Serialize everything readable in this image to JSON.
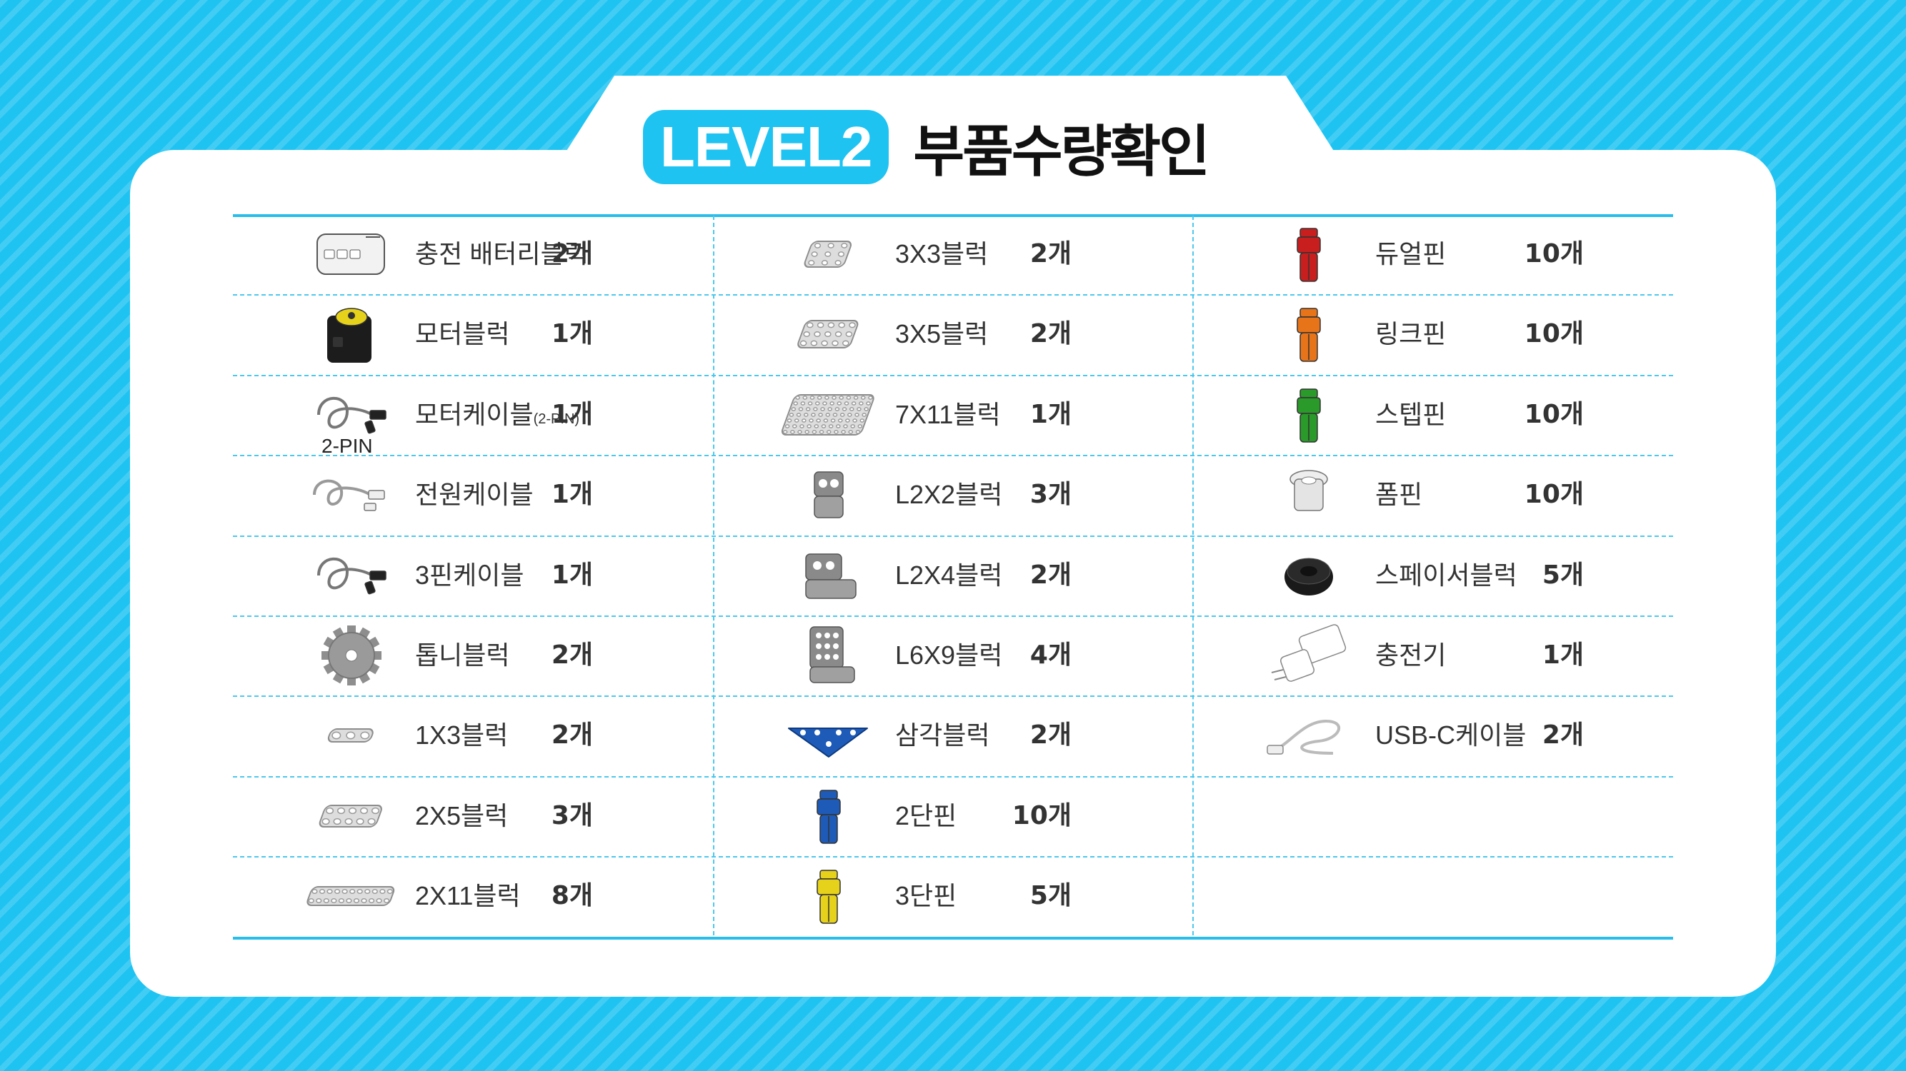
{
  "header": {
    "level": "LEVEL2",
    "title": "부품수량확인"
  },
  "columns": [
    {
      "rows": [
        {
          "name": "충전 배터리블럭",
          "qty": "2개",
          "icon": "battery-block-icon",
          "color": "#e8e8e8"
        },
        {
          "name": "모터블럭",
          "qty": "1개",
          "icon": "motor-block-icon",
          "color": "#222222"
        },
        {
          "name": "모터케이블",
          "name_suffix": "(2-PIN)",
          "qty": "1개",
          "icon": "motor-cable-icon",
          "icon_label": "2-PIN",
          "color": "#555555"
        },
        {
          "name": "전원케이블",
          "qty": "1개",
          "icon": "power-cable-icon",
          "color": "#888888"
        },
        {
          "name": "3핀케이블",
          "qty": "1개",
          "icon": "three-pin-cable-icon",
          "color": "#555555"
        },
        {
          "name": "톱니블럭",
          "qty": "2개",
          "icon": "gear-block-icon",
          "color": "#999999"
        },
        {
          "name": "1X3블럭",
          "qty": "2개",
          "icon": "block-1x3-icon",
          "color": "#dddddd"
        },
        {
          "name": "2X5블럭",
          "qty": "3개",
          "icon": "block-2x5-icon",
          "color": "#dddddd"
        },
        {
          "name": "2X11블럭",
          "qty": "8개",
          "icon": "block-2x11-icon",
          "color": "#dddddd"
        }
      ]
    },
    {
      "rows": [
        {
          "name": "3X3블럭",
          "qty": "2개",
          "icon": "block-3x3-icon",
          "color": "#dddddd"
        },
        {
          "name": "3X5블럭",
          "qty": "2개",
          "icon": "block-3x5-icon",
          "color": "#dddddd"
        },
        {
          "name": "7X11블럭",
          "qty": "1개",
          "icon": "block-7x11-icon",
          "color": "#dddddd"
        },
        {
          "name": "L2X2블럭",
          "qty": "3개",
          "icon": "l-block-2x2-icon",
          "color": "#8a8a8a"
        },
        {
          "name": "L2X4블럭",
          "qty": "2개",
          "icon": "l-block-2x4-icon",
          "color": "#8a8a8a"
        },
        {
          "name": "L6X9블럭",
          "qty": "4개",
          "icon": "l-block-6x9-icon",
          "color": "#8a8a8a"
        },
        {
          "name": "삼각블럭",
          "qty": "2개",
          "icon": "triangle-block-icon",
          "color": "#1e5bb8"
        },
        {
          "name": "2단핀",
          "qty": "10개",
          "icon": "two-step-pin-icon",
          "color": "#1e5bb8"
        },
        {
          "name": "3단핀",
          "qty": "5개",
          "icon": "three-step-pin-icon",
          "color": "#e6d21a"
        }
      ]
    },
    {
      "rows": [
        {
          "name": "듀얼핀",
          "qty": "10개",
          "icon": "dual-pin-icon",
          "color": "#c81e1e"
        },
        {
          "name": "링크핀",
          "qty": "10개",
          "icon": "link-pin-icon",
          "color": "#e8741a"
        },
        {
          "name": "스텝핀",
          "qty": "10개",
          "icon": "step-pin-icon",
          "color": "#2a9a2a"
        },
        {
          "name": "폼핀",
          "qty": "10개",
          "icon": "foam-pin-icon",
          "color": "#dddddd"
        },
        {
          "name": "스페이서블럭",
          "qty": "5개",
          "icon": "spacer-block-icon",
          "color": "#222222"
        },
        {
          "name": "충전기",
          "qty": "1개",
          "icon": "charger-icon",
          "color": "#ffffff"
        },
        {
          "name": "USB-C케이블",
          "qty": "2개",
          "icon": "usb-c-cable-icon",
          "color": "#dddddd"
        }
      ]
    }
  ]
}
